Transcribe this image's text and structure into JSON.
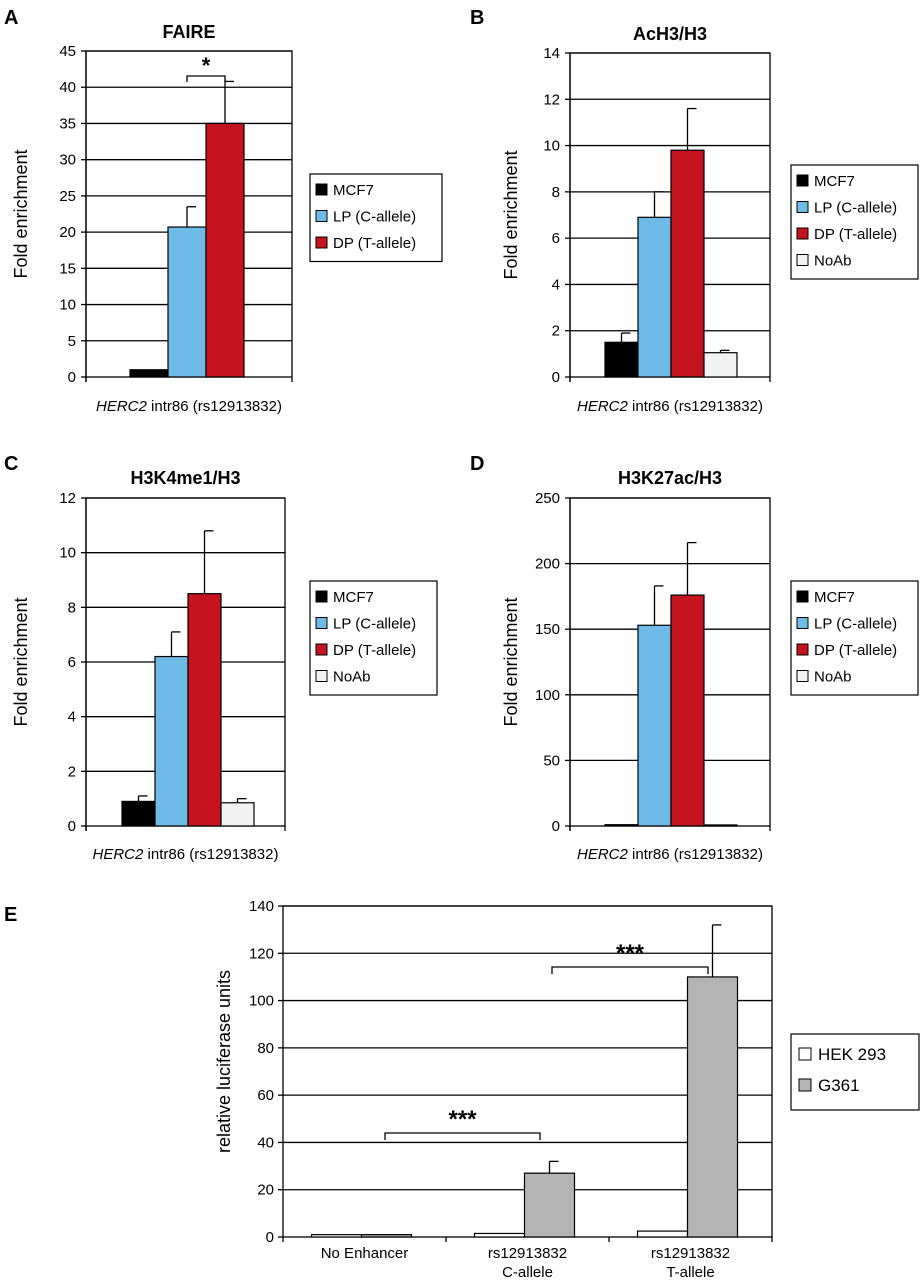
{
  "colors": {
    "MCF7": "#000000",
    "LP": "#6fbbe8",
    "DP": "#c5141e",
    "NoAb": "#f2f2f2",
    "HEK293": "#ffffff",
    "G361": "#b4b4b4"
  },
  "chart_data": [
    {
      "panel": "A",
      "type": "bar",
      "title": "FAIRE",
      "ylabel": "Fold enrichment",
      "xlabel_italic": "HERC2",
      "xlabel_rest": " intr86 (rs12913832)",
      "ylim": [
        0,
        45
      ],
      "yticks": [
        0,
        5,
        10,
        15,
        20,
        25,
        30,
        35,
        40,
        45
      ],
      "legend_position": "right",
      "series": [
        {
          "name": "MCF7",
          "value": 1.0,
          "error": 0
        },
        {
          "name": "LP (C-allele)",
          "value": 20.7,
          "error": 2.8
        },
        {
          "name": "DP (T-allele)",
          "value": 35.0,
          "error": 5.8
        }
      ],
      "significance": [
        {
          "from": 1,
          "to": 2,
          "label": "*"
        }
      ]
    },
    {
      "panel": "B",
      "type": "bar",
      "title": "AcH3/H3",
      "ylabel": "Fold enrichment",
      "xlabel_italic": "HERC2",
      "xlabel_rest": " intr86 (rs12913832)",
      "ylim": [
        0,
        14
      ],
      "yticks": [
        0,
        2,
        4,
        6,
        8,
        10,
        12,
        14
      ],
      "legend_position": "right",
      "series": [
        {
          "name": "MCF7",
          "value": 1.5,
          "error": 0.4
        },
        {
          "name": "LP (C-allele)",
          "value": 6.9,
          "error": 1.1
        },
        {
          "name": "DP (T-allele)",
          "value": 9.8,
          "error": 1.8
        },
        {
          "name": "NoAb",
          "value": 1.05,
          "error": 0.1
        }
      ]
    },
    {
      "panel": "C",
      "type": "bar",
      "title": "H3K4me1/H3",
      "ylabel": "Fold enrichment",
      "xlabel_italic": "HERC2",
      "xlabel_rest": " intr86 (rs12913832)",
      "ylim": [
        0,
        12
      ],
      "yticks": [
        0,
        2,
        4,
        6,
        8,
        10,
        12
      ],
      "legend_position": "right",
      "series": [
        {
          "name": "MCF7",
          "value": 0.9,
          "error": 0.2
        },
        {
          "name": "LP (C-allele)",
          "value": 6.2,
          "error": 0.9
        },
        {
          "name": "DP (T-allele)",
          "value": 8.5,
          "error": 2.3
        },
        {
          "name": "NoAb",
          "value": 0.85,
          "error": 0.15
        }
      ]
    },
    {
      "panel": "D",
      "type": "bar",
      "title": "H3K27ac/H3",
      "ylabel": "Fold enrichment",
      "xlabel_italic": "HERC2",
      "xlabel_rest": " intr86 (rs12913832)",
      "ylim": [
        0,
        250
      ],
      "yticks": [
        0,
        50,
        100,
        150,
        200,
        250
      ],
      "legend_position": "right",
      "series": [
        {
          "name": "MCF7",
          "value": 1.0,
          "error": 0
        },
        {
          "name": "LP (C-allele)",
          "value": 153,
          "error": 30
        },
        {
          "name": "DP (T-allele)",
          "value": 176,
          "error": 40
        },
        {
          "name": "NoAb",
          "value": 0.8,
          "error": 0
        }
      ]
    },
    {
      "panel": "E",
      "type": "bar",
      "title": "",
      "ylabel": "relative luciferase units",
      "ylim": [
        0,
        140
      ],
      "yticks": [
        0,
        20,
        40,
        60,
        80,
        100,
        120,
        140
      ],
      "legend_position": "right",
      "categories": [
        [
          "No Enhancer"
        ],
        [
          "rs12913832",
          "C-allele"
        ],
        [
          "rs12913832",
          "T-allele"
        ]
      ],
      "series": [
        {
          "name": "HEK 293",
          "values": [
            1.0,
            1.5,
            2.5
          ],
          "errors": [
            0,
            0,
            0
          ]
        },
        {
          "name": "G361",
          "values": [
            1.0,
            27,
            110
          ],
          "errors": [
            0,
            5,
            22
          ]
        }
      ],
      "significance": [
        {
          "from": 0,
          "to": 1,
          "label": "***"
        },
        {
          "from": 1,
          "to": 2,
          "label": "***"
        }
      ]
    }
  ]
}
